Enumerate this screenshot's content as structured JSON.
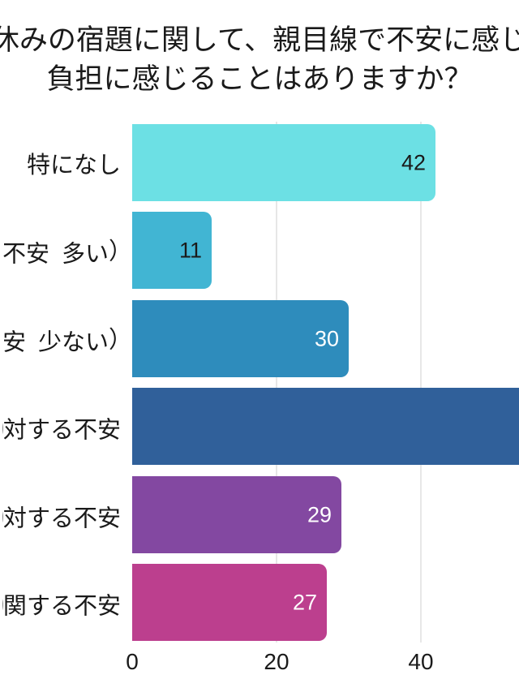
{
  "title": {
    "line1": "休みの宿題に関して、親目線で不安に感じ",
    "line2": "負担に感じることはありますか？"
  },
  "colors": {
    "background": "#ffffff",
    "gridline": "#e7e7e7",
    "title_text": "#1a1a1a",
    "axis_text": "#1a1a1a",
    "category_text": "#1a1a1a"
  },
  "chart_data": {
    "type": "bar",
    "orientation": "horizontal",
    "title": "休みの宿題に関して、親目線で不安に感じ 負担に感じることはありますか？",
    "categories": [
      "特になし",
      "不安（多い）",
      "安（少ない）",
      "に対する不安",
      "に対する不安",
      "に関する不安"
    ],
    "bars": [
      {
        "label": "特になし",
        "hidden_prefix": "",
        "value": 42,
        "value_label": "42",
        "color": "#6CE0E4",
        "value_text_color": "#1a1a1a"
      },
      {
        "label": "不安（多い）",
        "hidden_prefix": "",
        "value": 11,
        "value_label": "11",
        "color": "#41B5D3",
        "value_text_color": "#1a1a1a"
      },
      {
        "label": "安（少ない）",
        "hidden_prefix": "",
        "value": 30,
        "value_label": "30",
        "color": "#2E8CBC",
        "value_text_color": "#ffffff"
      },
      {
        "label": "対する不安",
        "hidden_prefix": "に",
        "value": null,
        "value_label": "",
        "color": "#30609A",
        "value_text_color": "#ffffff",
        "cropped_at_right_edge": true,
        "min_visible_value": 54
      },
      {
        "label": "対する不安",
        "hidden_prefix": "に",
        "value": 29,
        "value_label": "29",
        "color": "#8348A1",
        "value_text_color": "#ffffff"
      },
      {
        "label": "関する不安",
        "hidden_prefix": "に",
        "value": 27,
        "value_label": "27",
        "color": "#BC3F8E",
        "value_text_color": "#ffffff"
      }
    ],
    "x_axis": {
      "ticks": [
        0,
        20,
        40
      ],
      "tick_labels": [
        "0",
        "20",
        "40"
      ],
      "gridlines_at": [
        20,
        40
      ],
      "visible_range": [
        0,
        53.7
      ]
    },
    "legend": "none",
    "gridlines": true
  }
}
